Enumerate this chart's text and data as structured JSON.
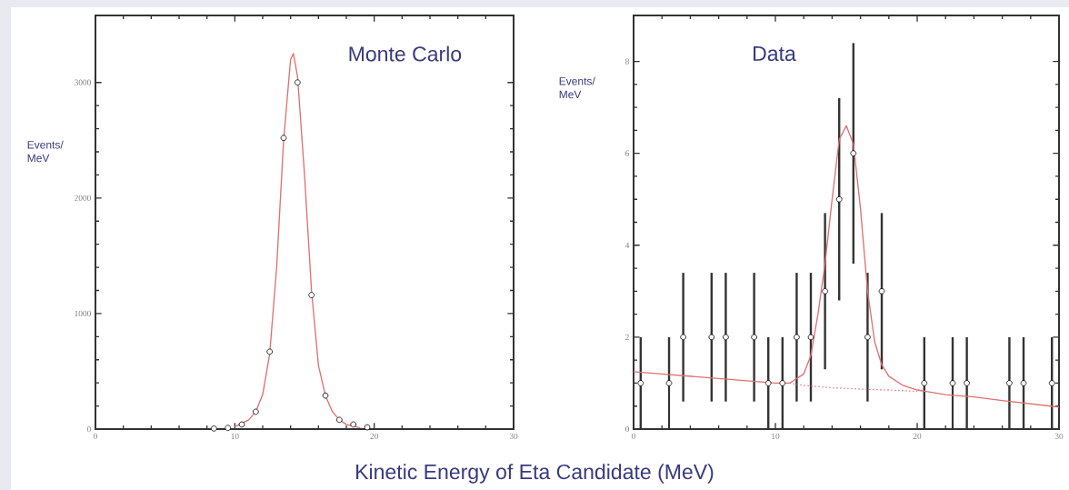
{
  "chart_data": [
    {
      "type": "scatter",
      "title": "Monte Carlo",
      "ylabel": "Events/ MeV",
      "xlabel": "Kinetic Energy of Eta Candidate (MeV)",
      "xlim": [
        0,
        30
      ],
      "xticks": [
        0,
        10,
        20,
        30
      ],
      "ylim": [
        0,
        3580
      ],
      "yticks": [
        0,
        1000,
        2000,
        3000
      ],
      "grid": false,
      "series": [
        {
          "type": "scatter",
          "marker": "circle",
          "color": "#000000",
          "x": [
            8.5,
            9.5,
            10.5,
            11.5,
            12.5,
            13.5,
            14.5,
            15.5,
            16.5,
            17.5,
            18.5,
            19.5
          ],
          "values": [
            5,
            10,
            40,
            150,
            670,
            2520,
            3000,
            1160,
            290,
            80,
            40,
            15
          ]
        },
        {
          "type": "line",
          "line_style": "solid",
          "color": "#e07070",
          "x": [
            10,
            11,
            11.5,
            12,
            12.5,
            13,
            13.5,
            14,
            14.2,
            14.5,
            15,
            15.5,
            16,
            16.5,
            17,
            17.5,
            18,
            19
          ],
          "values": [
            20,
            80,
            150,
            300,
            650,
            1400,
            2500,
            3200,
            3250,
            3050,
            2200,
            1200,
            550,
            290,
            150,
            80,
            40,
            10
          ]
        }
      ]
    },
    {
      "type": "scatter",
      "title": "Data",
      "ylabel": "Events/ MeV",
      "xlim": [
        0,
        30
      ],
      "xticks": [
        0,
        10,
        20,
        30
      ],
      "ylim": [
        0,
        9
      ],
      "yticks": [
        0,
        2,
        4,
        6,
        8
      ],
      "grid": false,
      "series": [
        {
          "type": "scatter",
          "marker": "circle",
          "color": "#000000",
          "x": [
            0.5,
            2.5,
            3.5,
            5.5,
            6.5,
            8.5,
            9.5,
            10.5,
            11.5,
            12.5,
            13.5,
            14.5,
            15.5,
            16.5,
            17.5,
            20.5,
            22.5,
            23.5,
            26.5,
            27.5,
            29.5
          ],
          "values": [
            1,
            1,
            2,
            2,
            2,
            2,
            1,
            1,
            2,
            2,
            3,
            5,
            6,
            2,
            3,
            1,
            1,
            1,
            1,
            1,
            1
          ],
          "errors": [
            1,
            1,
            1.4,
            1.4,
            1.4,
            1.4,
            1,
            1,
            1.4,
            1.4,
            1.7,
            2.2,
            2.4,
            1.4,
            1.7,
            1,
            1,
            1,
            1,
            1,
            1
          ]
        },
        {
          "type": "line",
          "line_style": "solid",
          "color": "#e07070",
          "x": [
            0,
            2,
            4,
            6,
            8,
            10,
            11,
            12,
            12.5,
            13,
            13.5,
            14,
            14.5,
            15,
            15.5,
            16,
            16.5,
            17,
            17.5,
            18,
            19,
            20,
            22,
            24,
            26,
            28,
            30
          ],
          "values": [
            1.25,
            1.2,
            1.15,
            1.1,
            1.05,
            1.0,
            1.0,
            1.2,
            1.6,
            2.5,
            3.6,
            5.0,
            6.3,
            6.6,
            6.2,
            4.8,
            3.0,
            1.9,
            1.4,
            1.15,
            0.95,
            0.85,
            0.75,
            0.7,
            0.62,
            0.55,
            0.48
          ]
        },
        {
          "type": "line",
          "line_style": "dotted",
          "color": "#e07070",
          "x": [
            11,
            12,
            14,
            16,
            18,
            20
          ],
          "values": [
            1.0,
            0.95,
            0.9,
            0.87,
            0.85,
            0.82
          ]
        }
      ]
    }
  ]
}
